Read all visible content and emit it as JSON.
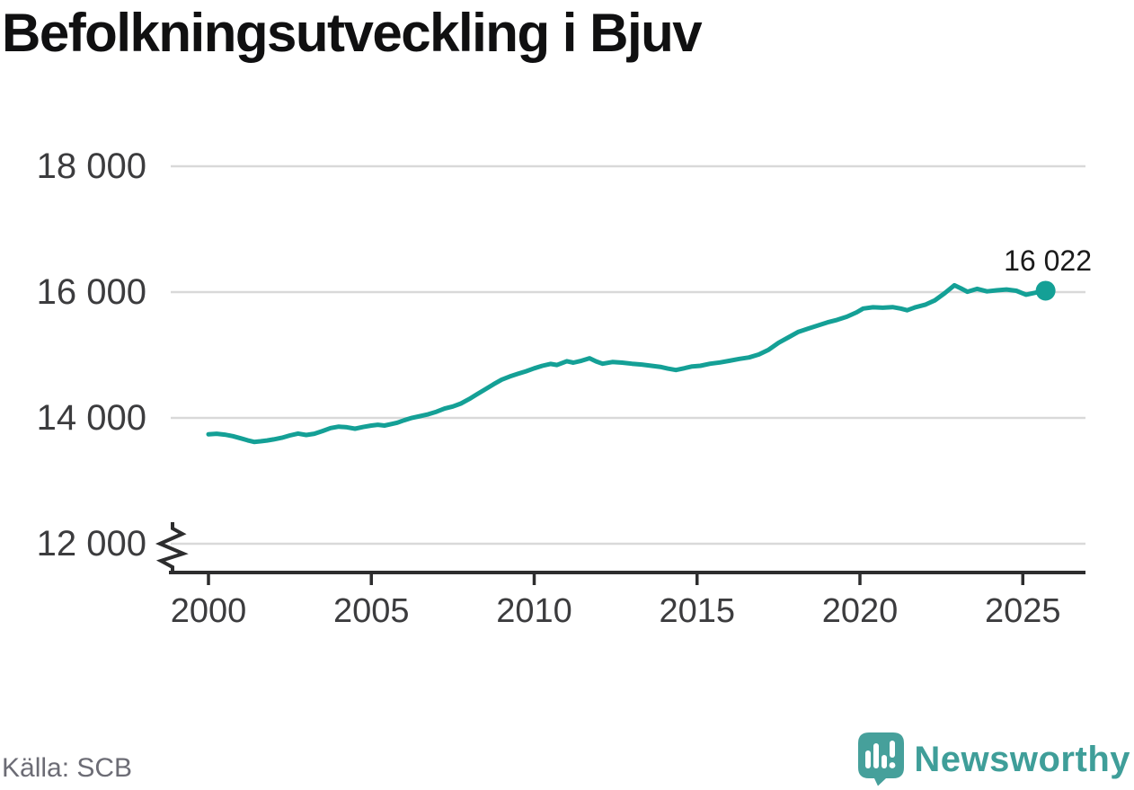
{
  "title": "Befolkningsutveckling i Bjuv",
  "source": "Källa: SCB",
  "brand": {
    "name": "Newsworthy",
    "icon": "newsworthy-speech-bubble-barchart-icon"
  },
  "colors": {
    "line": "#14a096",
    "logo": "#3f9e99",
    "grid": "#d9d9d9",
    "axis": "#2d2d2e",
    "tick_label": "#3c3c3e",
    "title": "#101011",
    "source_text": "#6c6c75",
    "end_label": "#1b1b1b"
  },
  "chart_data": {
    "type": "line",
    "title": "Befolkningsutveckling i Bjuv",
    "xlabel": "",
    "ylabel": "",
    "grid": "horizontal",
    "axis_break_at_bottom": true,
    "x_ticks": [
      2000,
      2005,
      2010,
      2015,
      2020,
      2025
    ],
    "y_ticks": [
      {
        "value": 18000,
        "label": "18 000"
      },
      {
        "value": 16000,
        "label": "16 000"
      },
      {
        "value": 14000,
        "label": "14 000"
      },
      {
        "value": 12000,
        "label": "12 000"
      }
    ],
    "xlim": [
      1998.9,
      2027
    ],
    "ylim_visible": [
      12000,
      18000
    ],
    "last_point": {
      "x": 2025.7,
      "value": 16022,
      "label": "16 022"
    },
    "series": [
      {
        "name": "Befolkning i Bjuv",
        "points": [
          [
            2000.0,
            13740
          ],
          [
            2000.25,
            13748
          ],
          [
            2000.5,
            13735
          ],
          [
            2000.75,
            13710
          ],
          [
            2001.0,
            13675
          ],
          [
            2001.2,
            13645
          ],
          [
            2001.4,
            13618
          ],
          [
            2001.6,
            13628
          ],
          [
            2001.8,
            13642
          ],
          [
            2002.0,
            13658
          ],
          [
            2002.25,
            13685
          ],
          [
            2002.5,
            13722
          ],
          [
            2002.75,
            13752
          ],
          [
            2003.0,
            13728
          ],
          [
            2003.25,
            13748
          ],
          [
            2003.5,
            13792
          ],
          [
            2003.75,
            13838
          ],
          [
            2004.0,
            13862
          ],
          [
            2004.25,
            13852
          ],
          [
            2004.5,
            13828
          ],
          [
            2004.75,
            13855
          ],
          [
            2005.0,
            13878
          ],
          [
            2005.2,
            13892
          ],
          [
            2005.4,
            13878
          ],
          [
            2005.6,
            13902
          ],
          [
            2005.8,
            13925
          ],
          [
            2006.0,
            13962
          ],
          [
            2006.25,
            14002
          ],
          [
            2006.5,
            14028
          ],
          [
            2006.75,
            14058
          ],
          [
            2007.0,
            14098
          ],
          [
            2007.25,
            14148
          ],
          [
            2007.5,
            14182
          ],
          [
            2007.75,
            14228
          ],
          [
            2008.0,
            14298
          ],
          [
            2008.25,
            14378
          ],
          [
            2008.5,
            14455
          ],
          [
            2008.75,
            14535
          ],
          [
            2009.0,
            14608
          ],
          [
            2009.25,
            14658
          ],
          [
            2009.5,
            14702
          ],
          [
            2009.75,
            14742
          ],
          [
            2010.0,
            14788
          ],
          [
            2010.25,
            14828
          ],
          [
            2010.5,
            14858
          ],
          [
            2010.7,
            14842
          ],
          [
            2011.0,
            14902
          ],
          [
            2011.2,
            14878
          ],
          [
            2011.45,
            14908
          ],
          [
            2011.7,
            14948
          ],
          [
            2011.9,
            14898
          ],
          [
            2012.1,
            14862
          ],
          [
            2012.4,
            14888
          ],
          [
            2012.7,
            14878
          ],
          [
            2013.0,
            14862
          ],
          [
            2013.3,
            14848
          ],
          [
            2013.6,
            14828
          ],
          [
            2013.9,
            14808
          ],
          [
            2014.1,
            14785
          ],
          [
            2014.35,
            14762
          ],
          [
            2014.6,
            14788
          ],
          [
            2014.85,
            14818
          ],
          [
            2015.1,
            14828
          ],
          [
            2015.4,
            14862
          ],
          [
            2015.7,
            14882
          ],
          [
            2016.0,
            14908
          ],
          [
            2016.3,
            14938
          ],
          [
            2016.6,
            14962
          ],
          [
            2016.9,
            15008
          ],
          [
            2017.2,
            15085
          ],
          [
            2017.5,
            15195
          ],
          [
            2017.8,
            15278
          ],
          [
            2018.1,
            15365
          ],
          [
            2018.4,
            15418
          ],
          [
            2018.7,
            15468
          ],
          [
            2019.0,
            15518
          ],
          [
            2019.3,
            15558
          ],
          [
            2019.6,
            15608
          ],
          [
            2019.9,
            15678
          ],
          [
            2020.1,
            15738
          ],
          [
            2020.4,
            15758
          ],
          [
            2020.7,
            15752
          ],
          [
            2021.0,
            15762
          ],
          [
            2021.25,
            15738
          ],
          [
            2021.45,
            15712
          ],
          [
            2021.7,
            15758
          ],
          [
            2022.0,
            15798
          ],
          [
            2022.3,
            15868
          ],
          [
            2022.6,
            15982
          ],
          [
            2022.9,
            16108
          ],
          [
            2023.1,
            16058
          ],
          [
            2023.3,
            16005
          ],
          [
            2023.6,
            16052
          ],
          [
            2023.9,
            16012
          ],
          [
            2024.2,
            16028
          ],
          [
            2024.5,
            16042
          ],
          [
            2024.8,
            16022
          ],
          [
            2025.1,
            15958
          ],
          [
            2025.4,
            15992
          ],
          [
            2025.7,
            16022
          ]
        ]
      }
    ]
  }
}
